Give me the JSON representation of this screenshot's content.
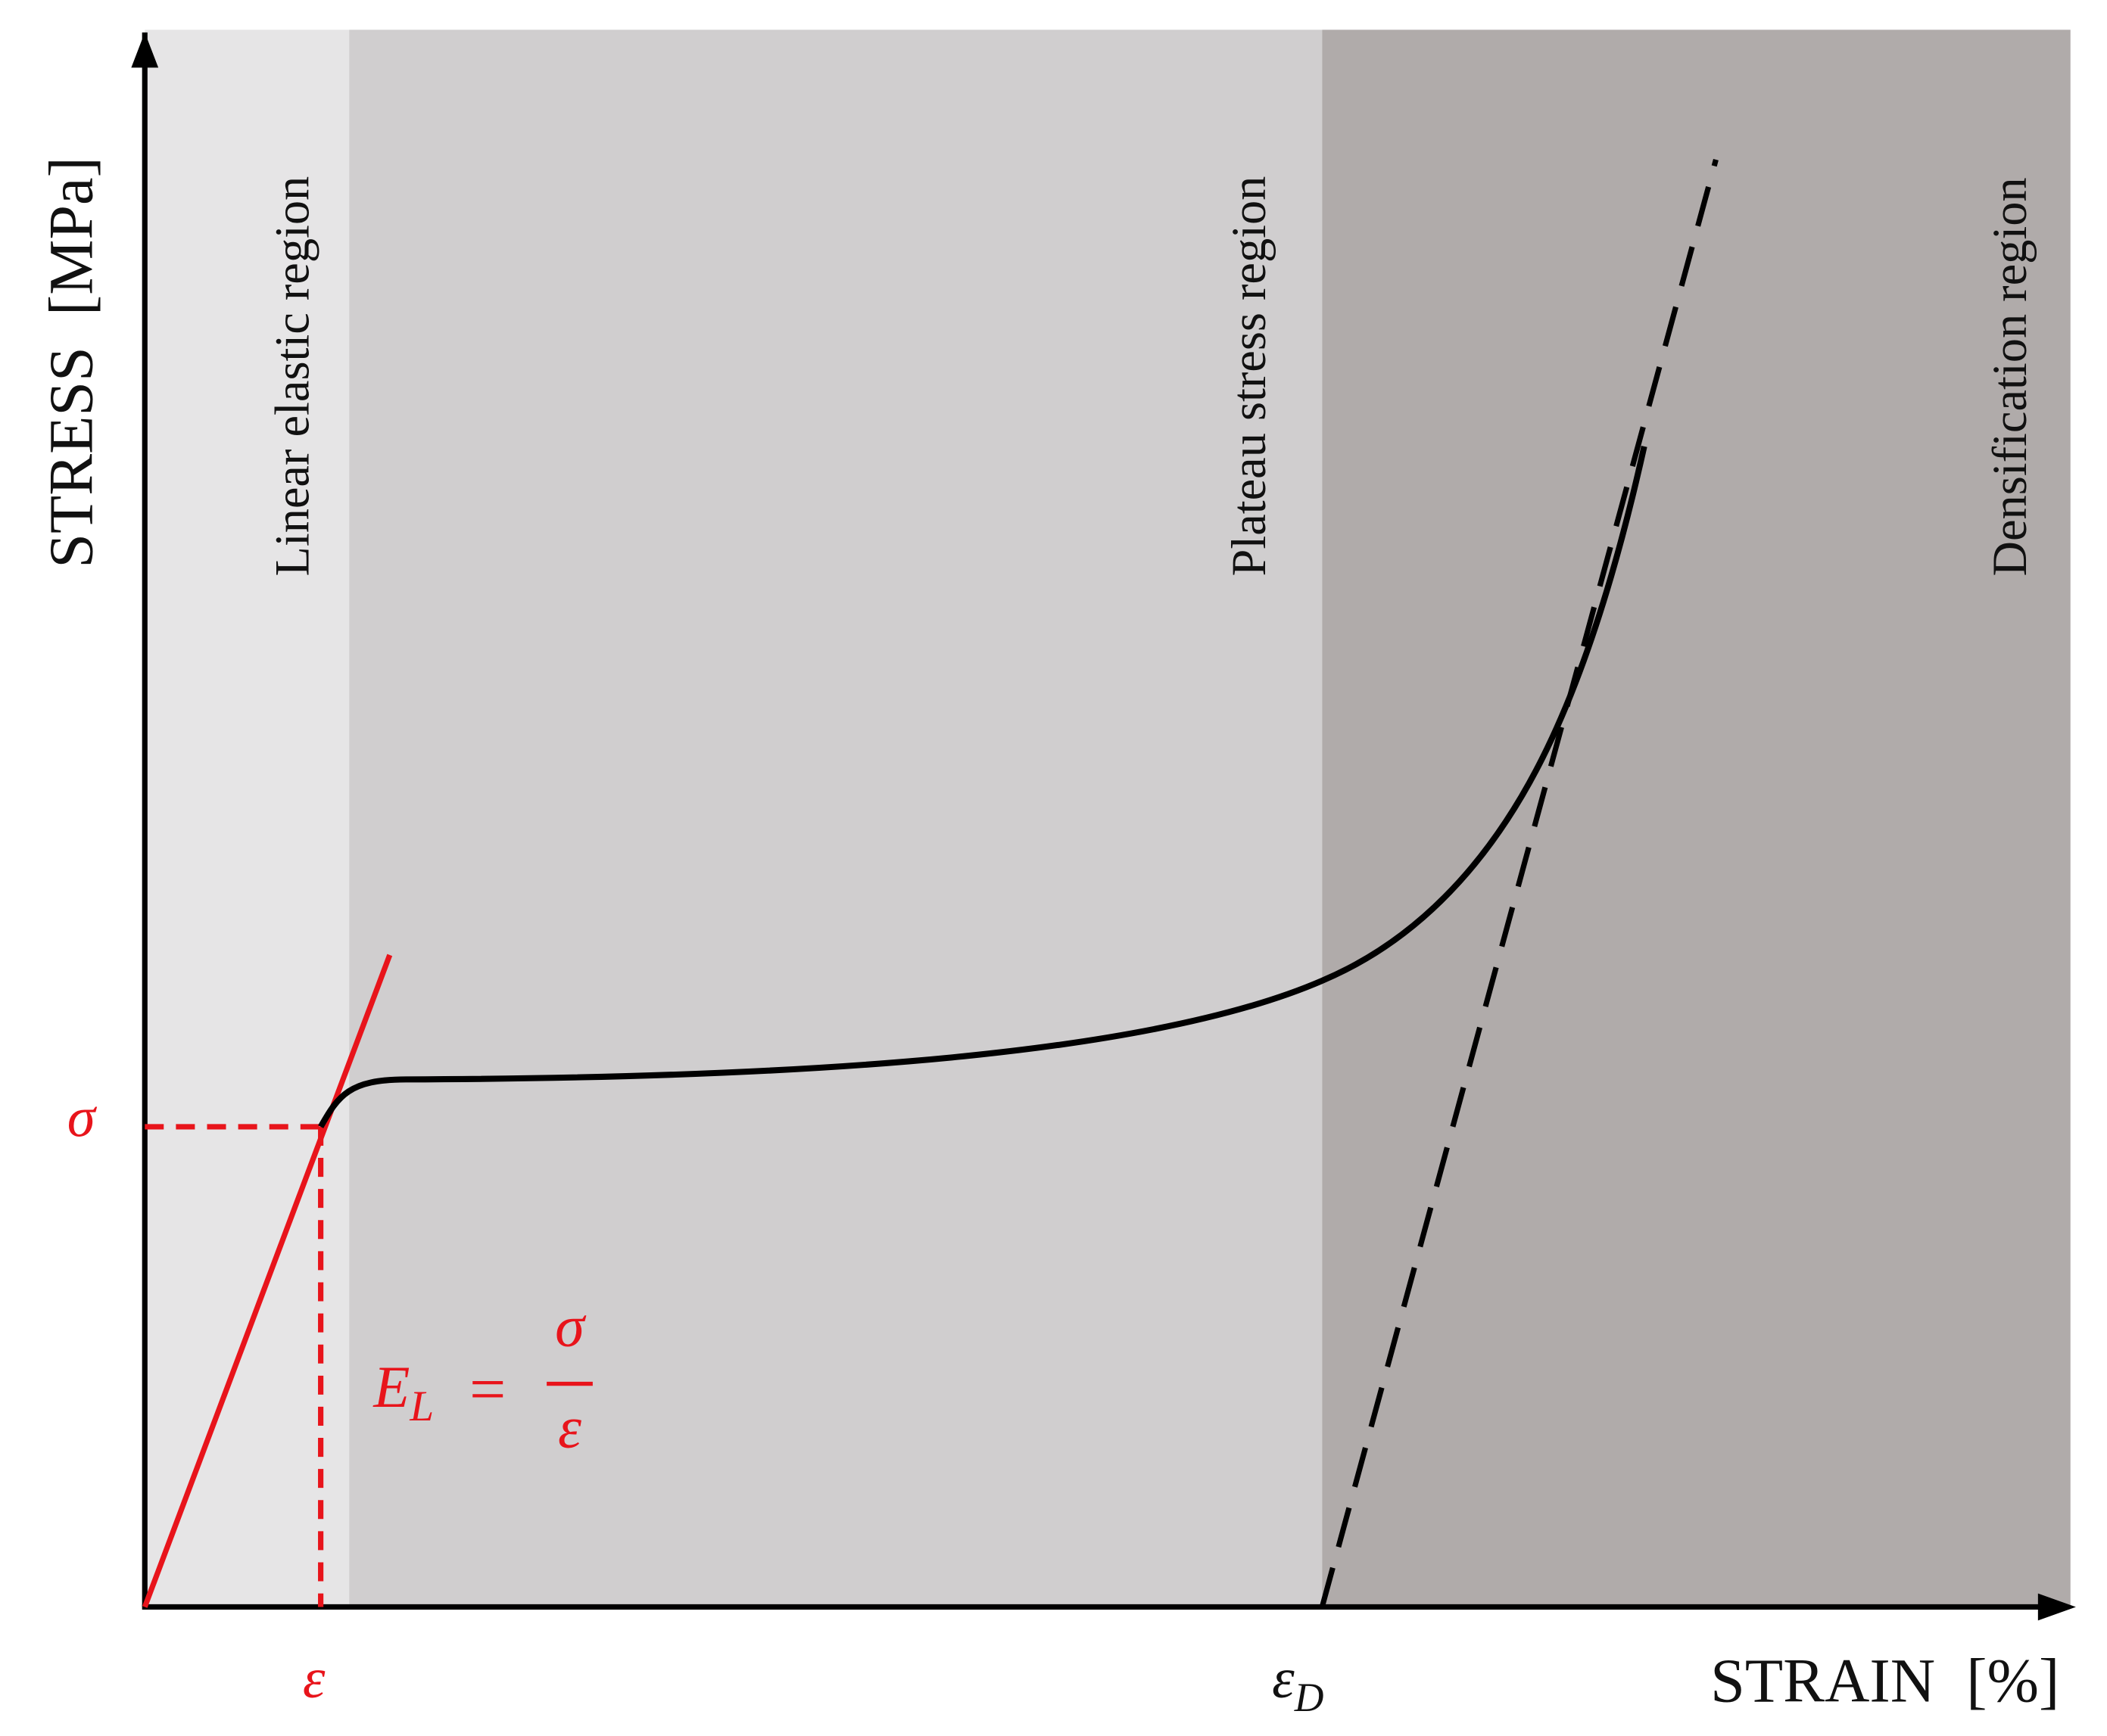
{
  "axes": {
    "y_label": "STRESS  [MPa]",
    "x_label": "STRAIN  [%]"
  },
  "regions": [
    {
      "label": "Linear elastic region"
    },
    {
      "label": "Plateau stress region"
    },
    {
      "label": "Densification region"
    }
  ],
  "markers": {
    "sigma": "σ",
    "epsilon": "ε",
    "epsilon_d": {
      "base": "ε",
      "sub": "D"
    }
  },
  "formula": {
    "lhs_base": "E",
    "lhs_sub": "L",
    "equals": "=",
    "numerator": "σ",
    "denominator": "ε"
  }
}
